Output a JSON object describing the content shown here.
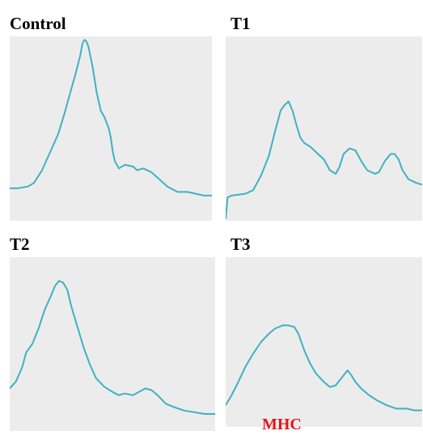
{
  "style": {
    "panel_background": "#ececec",
    "trace_color": "#3fb1c1",
    "label_color": "#e3141a"
  },
  "chart_data": [
    {
      "type": "line",
      "title": "Control",
      "xlabel": "",
      "ylabel": "",
      "xlim": [
        0,
        1
      ],
      "ylim": [
        0,
        1
      ],
      "grid": false,
      "series": [
        {
          "points": [
            [
              0,
              0.17
            ],
            [
              0.04,
              0.17
            ],
            [
              0.09,
              0.18
            ],
            [
              0.12,
              0.2
            ],
            [
              0.16,
              0.27
            ],
            [
              0.2,
              0.37
            ],
            [
              0.24,
              0.47
            ],
            [
              0.27,
              0.58
            ],
            [
              0.3,
              0.7
            ],
            [
              0.33,
              0.82
            ],
            [
              0.35,
              0.91
            ],
            [
              0.36,
              0.97
            ],
            [
              0.37,
              0.99
            ],
            [
              0.38,
              0.98
            ],
            [
              0.39,
              0.95
            ],
            [
              0.41,
              0.84
            ],
            [
              0.43,
              0.7
            ],
            [
              0.45,
              0.6
            ],
            [
              0.47,
              0.56
            ],
            [
              0.49,
              0.5
            ],
            [
              0.5,
              0.45
            ],
            [
              0.51,
              0.37
            ],
            [
              0.52,
              0.32
            ],
            [
              0.54,
              0.28
            ],
            [
              0.57,
              0.3
            ],
            [
              0.61,
              0.29
            ],
            [
              0.63,
              0.27
            ],
            [
              0.66,
              0.28
            ],
            [
              0.7,
              0.26
            ],
            [
              0.74,
              0.22
            ],
            [
              0.78,
              0.18
            ],
            [
              0.83,
              0.15
            ],
            [
              0.88,
              0.15
            ],
            [
              0.92,
              0.14
            ],
            [
              0.96,
              0.13
            ],
            [
              1,
              0.13
            ]
          ]
        }
      ]
    },
    {
      "type": "line",
      "title": "T1",
      "xlabel": "",
      "ylabel": "",
      "xlim": [
        0,
        1
      ],
      "ylim": [
        0,
        1
      ],
      "grid": false,
      "series": [
        {
          "points": [
            [
              0,
              0
            ],
            [
              0.01,
              0.12
            ],
            [
              0.03,
              0.13
            ],
            [
              0.1,
              0.14
            ],
            [
              0.14,
              0.16
            ],
            [
              0.18,
              0.24
            ],
            [
              0.22,
              0.35
            ],
            [
              0.25,
              0.48
            ],
            [
              0.28,
              0.6
            ],
            [
              0.3,
              0.63
            ],
            [
              0.32,
              0.65
            ],
            [
              0.34,
              0.6
            ],
            [
              0.36,
              0.52
            ],
            [
              0.38,
              0.45
            ],
            [
              0.4,
              0.42
            ],
            [
              0.43,
              0.4
            ],
            [
              0.46,
              0.37
            ],
            [
              0.48,
              0.35
            ],
            [
              0.5,
              0.33
            ],
            [
              0.53,
              0.27
            ],
            [
              0.56,
              0.25
            ],
            [
              0.58,
              0.29
            ],
            [
              0.6,
              0.36
            ],
            [
              0.63,
              0.39
            ],
            [
              0.66,
              0.38
            ],
            [
              0.69,
              0.32
            ],
            [
              0.72,
              0.27
            ],
            [
              0.76,
              0.25
            ],
            [
              0.78,
              0.26
            ],
            [
              0.81,
              0.32
            ],
            [
              0.84,
              0.36
            ],
            [
              0.86,
              0.36
            ],
            [
              0.88,
              0.33
            ],
            [
              0.9,
              0.27
            ],
            [
              0.93,
              0.22
            ],
            [
              0.97,
              0.2
            ],
            [
              1,
              0.19
            ]
          ]
        }
      ]
    },
    {
      "type": "line",
      "title": "T2",
      "xlabel": "",
      "ylabel": "",
      "xlim": [
        0,
        1
      ],
      "ylim": [
        0,
        1
      ],
      "grid": false,
      "series": [
        {
          "points": [
            [
              0,
              0.24
            ],
            [
              0.03,
              0.28
            ],
            [
              0.06,
              0.36
            ],
            [
              0.08,
              0.45
            ],
            [
              0.11,
              0.5
            ],
            [
              0.14,
              0.59
            ],
            [
              0.17,
              0.7
            ],
            [
              0.2,
              0.78
            ],
            [
              0.22,
              0.84
            ],
            [
              0.24,
              0.87
            ],
            [
              0.26,
              0.86
            ],
            [
              0.28,
              0.82
            ],
            [
              0.3,
              0.72
            ],
            [
              0.33,
              0.6
            ],
            [
              0.36,
              0.48
            ],
            [
              0.39,
              0.38
            ],
            [
              0.42,
              0.3
            ],
            [
              0.46,
              0.25
            ],
            [
              0.5,
              0.22
            ],
            [
              0.53,
              0.2
            ],
            [
              0.56,
              0.21
            ],
            [
              0.6,
              0.2
            ],
            [
              0.63,
              0.22
            ],
            [
              0.66,
              0.24
            ],
            [
              0.69,
              0.23
            ],
            [
              0.72,
              0.2
            ],
            [
              0.76,
              0.15
            ],
            [
              0.8,
              0.13
            ],
            [
              0.85,
              0.11
            ],
            [
              0.9,
              0.1
            ],
            [
              0.95,
              0.09
            ],
            [
              1,
              0.09
            ]
          ]
        }
      ]
    },
    {
      "type": "line",
      "title": "T3",
      "xlabel": "",
      "ylabel": "",
      "xlim": [
        0,
        1
      ],
      "ylim": [
        0,
        1
      ],
      "grid": false,
      "series": [
        {
          "points": [
            [
              0,
              0.12
            ],
            [
              0.03,
              0.18
            ],
            [
              0.06,
              0.25
            ],
            [
              0.1,
              0.35
            ],
            [
              0.14,
              0.43
            ],
            [
              0.18,
              0.5
            ],
            [
              0.22,
              0.55
            ],
            [
              0.25,
              0.58
            ],
            [
              0.29,
              0.6
            ],
            [
              0.32,
              0.6
            ],
            [
              0.35,
              0.59
            ],
            [
              0.37,
              0.55
            ],
            [
              0.4,
              0.45
            ],
            [
              0.43,
              0.37
            ],
            [
              0.46,
              0.31
            ],
            [
              0.5,
              0.26
            ],
            [
              0.53,
              0.23
            ],
            [
              0.56,
              0.24
            ],
            [
              0.58,
              0.27
            ],
            [
              0.6,
              0.3
            ],
            [
              0.62,
              0.33
            ],
            [
              0.64,
              0.3
            ],
            [
              0.66,
              0.26
            ],
            [
              0.69,
              0.22
            ],
            [
              0.73,
              0.18
            ],
            [
              0.77,
              0.15
            ],
            [
              0.82,
              0.12
            ],
            [
              0.87,
              0.1
            ],
            [
              0.92,
              0.1
            ],
            [
              0.96,
              0.09
            ],
            [
              1,
              0.09
            ]
          ]
        }
      ]
    }
  ],
  "annotations": {
    "mhc": "MHC"
  }
}
